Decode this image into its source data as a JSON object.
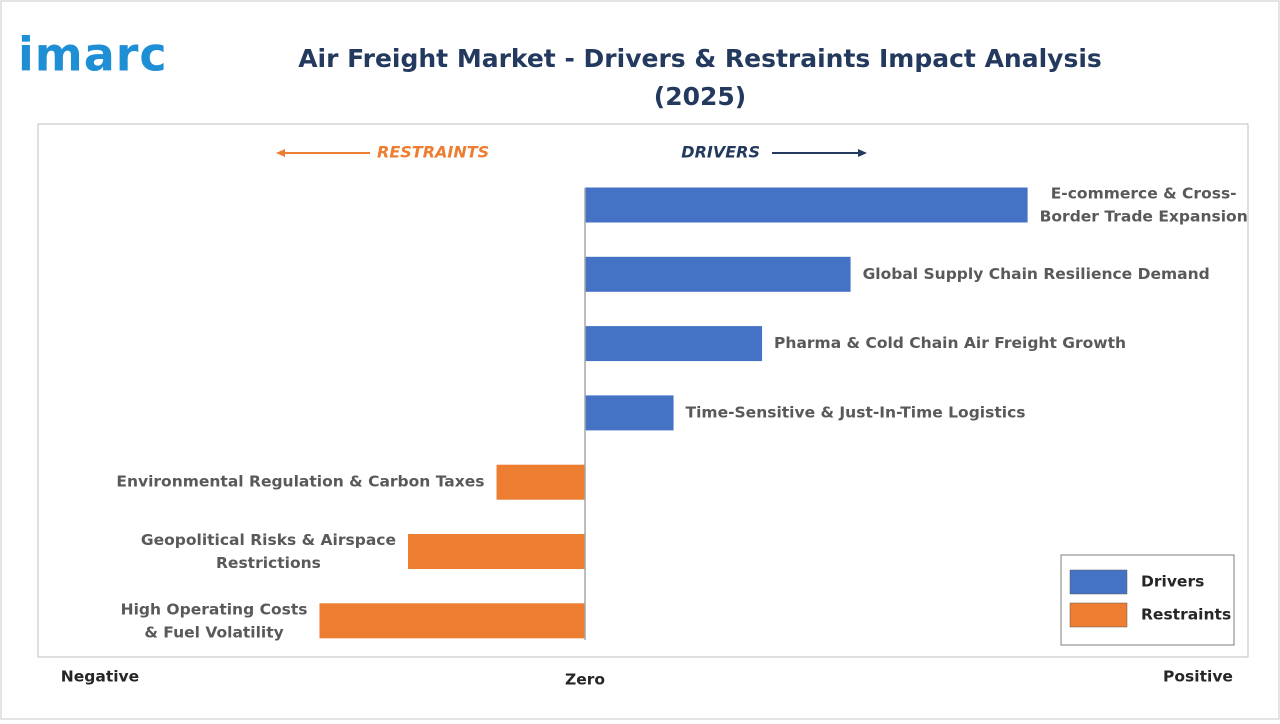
{
  "logo": "imarc",
  "chart_data": {
    "type": "diverging_bar",
    "title": "Air Freight Market - Drivers & Restraints Impact Analysis\n(2025)",
    "restraints_header": "RESTRAINTS",
    "drivers_header": "DRIVERS",
    "categories": [
      "E-commerce & Cross-\nBorder Trade Expansion",
      "Global Supply Chain Resilience Demand",
      "Pharma & Cold Chain Air Freight Growth",
      "Time-Sensitive & Just-In-Time Logistics",
      "Environmental Regulation & Carbon Taxes",
      "Geopolitical Risks & Airspace\nRestrictions",
      "High Operating Costs\n& Fuel Volatility"
    ],
    "series": [
      {
        "name": "Drivers",
        "color": "#4472c4",
        "values": [
          5,
          3,
          2,
          1,
          null,
          null,
          null
        ]
      },
      {
        "name": "Restraints",
        "color": "#ed7d31",
        "values": [
          null,
          null,
          null,
          null,
          -1,
          -2,
          -3
        ]
      }
    ],
    "xlim": [
      -6.18,
      7.49
    ],
    "x_axis_labels": {
      "negative": "Negative",
      "zero": "Zero",
      "positive": "Positive"
    },
    "legend": "bottom-right"
  }
}
